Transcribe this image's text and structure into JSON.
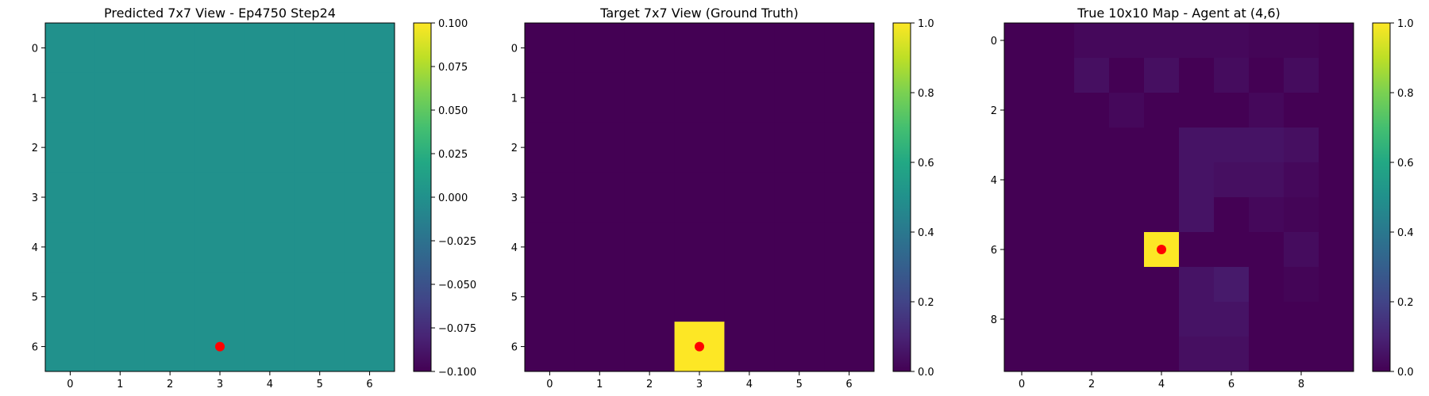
{
  "chart_data": [
    {
      "type": "heatmap",
      "title": "Predicted 7x7 View - Ep4750 Step24",
      "rows": 7,
      "cols": 7,
      "values": [
        [
          0,
          0,
          0,
          0,
          0,
          0,
          0
        ],
        [
          0,
          0,
          0,
          0,
          0,
          0,
          0
        ],
        [
          0,
          0,
          0,
          0,
          0,
          0,
          0
        ],
        [
          0,
          0,
          0,
          0,
          0,
          0,
          0
        ],
        [
          0,
          0,
          0,
          0,
          0,
          0,
          0
        ],
        [
          0,
          0,
          0,
          0,
          0,
          0,
          0
        ],
        [
          0,
          0,
          0,
          0,
          0,
          0,
          0
        ]
      ],
      "vmin": -0.1,
      "vmax": 0.1,
      "colormap": "viridis",
      "x_ticks": [
        "0",
        "1",
        "2",
        "3",
        "4",
        "5",
        "6"
      ],
      "y_ticks": [
        "0",
        "1",
        "2",
        "3",
        "4",
        "5",
        "6"
      ],
      "colorbar_ticks": [
        "0.100",
        "0.075",
        "0.050",
        "0.025",
        "0.000",
        "−0.025",
        "−0.050",
        "−0.075",
        "−0.100"
      ],
      "marker": {
        "x": 3,
        "y": 6,
        "color": "#ff0000"
      }
    },
    {
      "type": "heatmap",
      "title": "Target 7x7 View (Ground Truth)",
      "rows": 7,
      "cols": 7,
      "values": [
        [
          0,
          0,
          0,
          0,
          0,
          0,
          0
        ],
        [
          0,
          0,
          0,
          0,
          0,
          0,
          0
        ],
        [
          0,
          0,
          0,
          0,
          0,
          0,
          0
        ],
        [
          0,
          0,
          0,
          0,
          0,
          0,
          0
        ],
        [
          0,
          0,
          0,
          0,
          0,
          0,
          0
        ],
        [
          0,
          0,
          0,
          0,
          0,
          0,
          0
        ],
        [
          0,
          0,
          0,
          1,
          0,
          0,
          0
        ]
      ],
      "vmin": 0,
      "vmax": 1,
      "colormap": "viridis",
      "x_ticks": [
        "0",
        "1",
        "2",
        "3",
        "4",
        "5",
        "6"
      ],
      "y_ticks": [
        "0",
        "1",
        "2",
        "3",
        "4",
        "5",
        "6"
      ],
      "colorbar_ticks": [
        "1.0",
        "0.8",
        "0.6",
        "0.4",
        "0.2",
        "0.0"
      ],
      "marker": {
        "x": 3,
        "y": 6,
        "color": "#ff0000"
      }
    },
    {
      "type": "heatmap",
      "title": "True 10x10 Map - Agent at (4,6)",
      "rows": 10,
      "cols": 10,
      "values": [
        [
          0,
          0,
          0.02,
          0.02,
          0.02,
          0.02,
          0.02,
          0.01,
          0.01,
          0
        ],
        [
          0,
          0,
          0.04,
          0,
          0.04,
          0,
          0.03,
          0,
          0.03,
          0
        ],
        [
          0,
          0,
          0,
          0.02,
          0,
          0,
          0,
          0.02,
          0,
          0
        ],
        [
          0,
          0,
          0,
          0,
          0,
          0.05,
          0.05,
          0.05,
          0.04,
          0
        ],
        [
          0,
          0,
          0,
          0,
          0,
          0.05,
          0.04,
          0.04,
          0.02,
          0
        ],
        [
          0,
          0,
          0,
          0,
          0,
          0.05,
          0,
          0.02,
          0.01,
          0
        ],
        [
          0,
          0,
          0,
          0,
          1,
          0,
          0,
          0,
          0.03,
          0
        ],
        [
          0,
          0,
          0,
          0,
          0,
          0.05,
          0.07,
          0,
          0.01,
          0
        ],
        [
          0,
          0,
          0,
          0,
          0,
          0.05,
          0.05,
          0,
          0,
          0
        ],
        [
          0,
          0,
          0,
          0,
          0,
          0.04,
          0.04,
          0,
          0,
          0
        ]
      ],
      "vmin": 0,
      "vmax": 1,
      "colormap": "viridis",
      "x_ticks": [
        "0",
        "2",
        "4",
        "6",
        "8"
      ],
      "x_tick_values": [
        0,
        2,
        4,
        6,
        8
      ],
      "y_ticks": [
        "0",
        "2",
        "4",
        "6",
        "8"
      ],
      "y_tick_values": [
        0,
        2,
        4,
        6,
        8
      ],
      "colorbar_ticks": [
        "1.0",
        "0.8",
        "0.6",
        "0.4",
        "0.2",
        "0.0"
      ],
      "marker": {
        "x": 4,
        "y": 6,
        "color": "#ff0000"
      }
    }
  ]
}
